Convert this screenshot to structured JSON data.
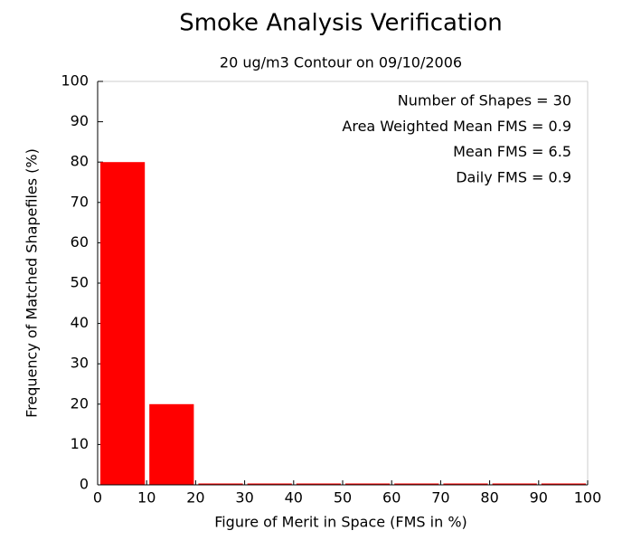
{
  "chart_data": {
    "type": "histogram",
    "title": "Smoke Analysis Verification",
    "subtitle": "20 ug/m3 Contour on 09/10/2006",
    "x_label": "Figure of Merit in Space (FMS in %)",
    "y_label": "Frequency of Matched Shapefiles (%)",
    "bins": [
      0,
      10,
      20,
      30,
      40,
      50,
      60,
      70,
      80,
      90,
      100
    ],
    "values": [
      80,
      20,
      0,
      0,
      0,
      0,
      0,
      0,
      0,
      0
    ],
    "color": "#ff0000",
    "xlim": [
      0,
      100
    ],
    "xticks": [
      0,
      10,
      20,
      30,
      40,
      50,
      60,
      70,
      80,
      90,
      100
    ],
    "ylim": [
      0,
      100
    ],
    "yticks": [
      0,
      10,
      20,
      30,
      40,
      50,
      60,
      70,
      80,
      90,
      100
    ],
    "annotations": [
      "Number of Shapes = 30",
      "Area Weighted Mean FMS = 0.9",
      "Mean FMS = 6.5",
      "Daily FMS = 0.9"
    ]
  }
}
